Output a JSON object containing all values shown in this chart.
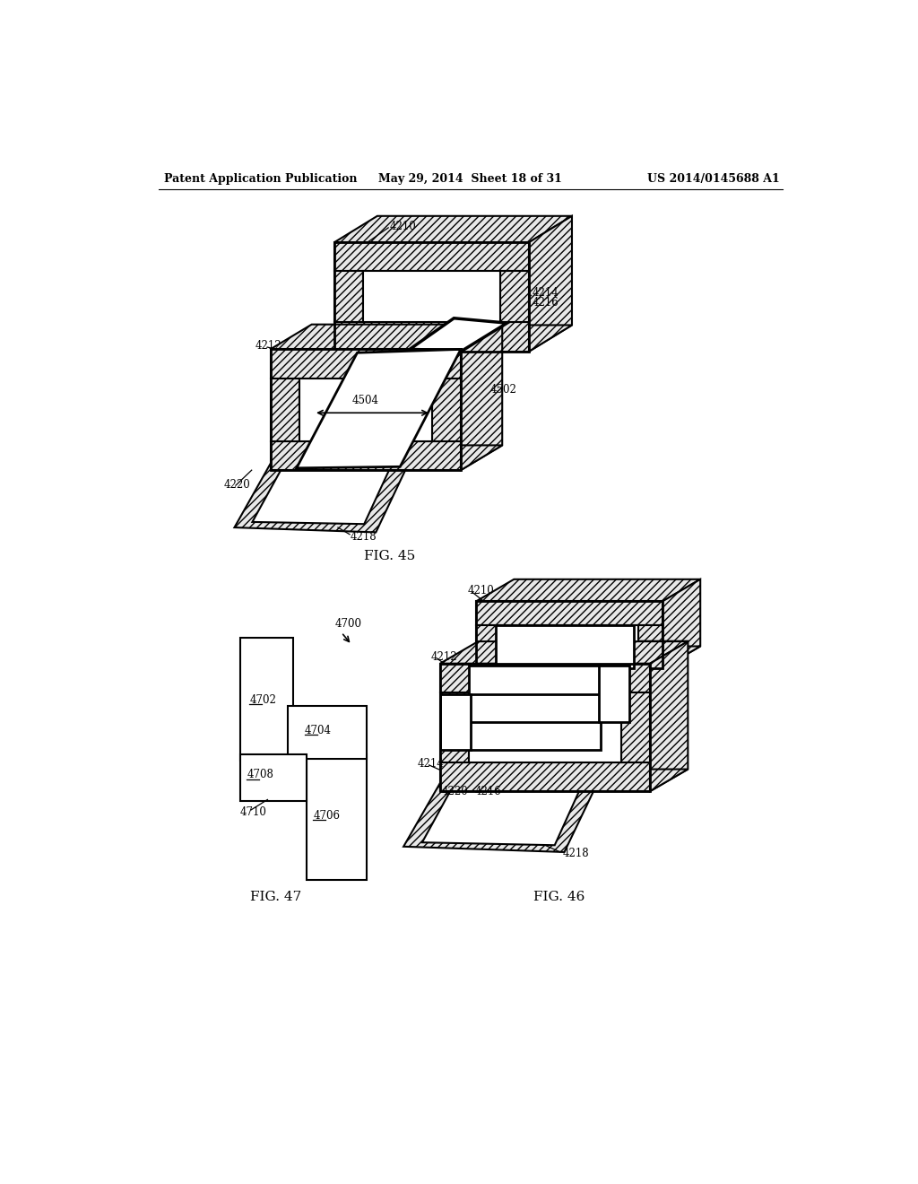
{
  "bg_color": "#ffffff",
  "header_left": "Patent Application Publication",
  "header_mid": "May 29, 2014  Sheet 18 of 31",
  "header_right": "US 2014/0145688 A1",
  "fig45_label": "FIG. 45",
  "fig46_label": "FIG. 46",
  "fig47_label": "FIG. 47",
  "hatch_dense": "////",
  "hatch_color": "#000000",
  "line_color": "#000000",
  "lw": 1.5,
  "lw_thick": 3.0,
  "conductor_color": "#ffffff",
  "core_fill": "#ffffff"
}
